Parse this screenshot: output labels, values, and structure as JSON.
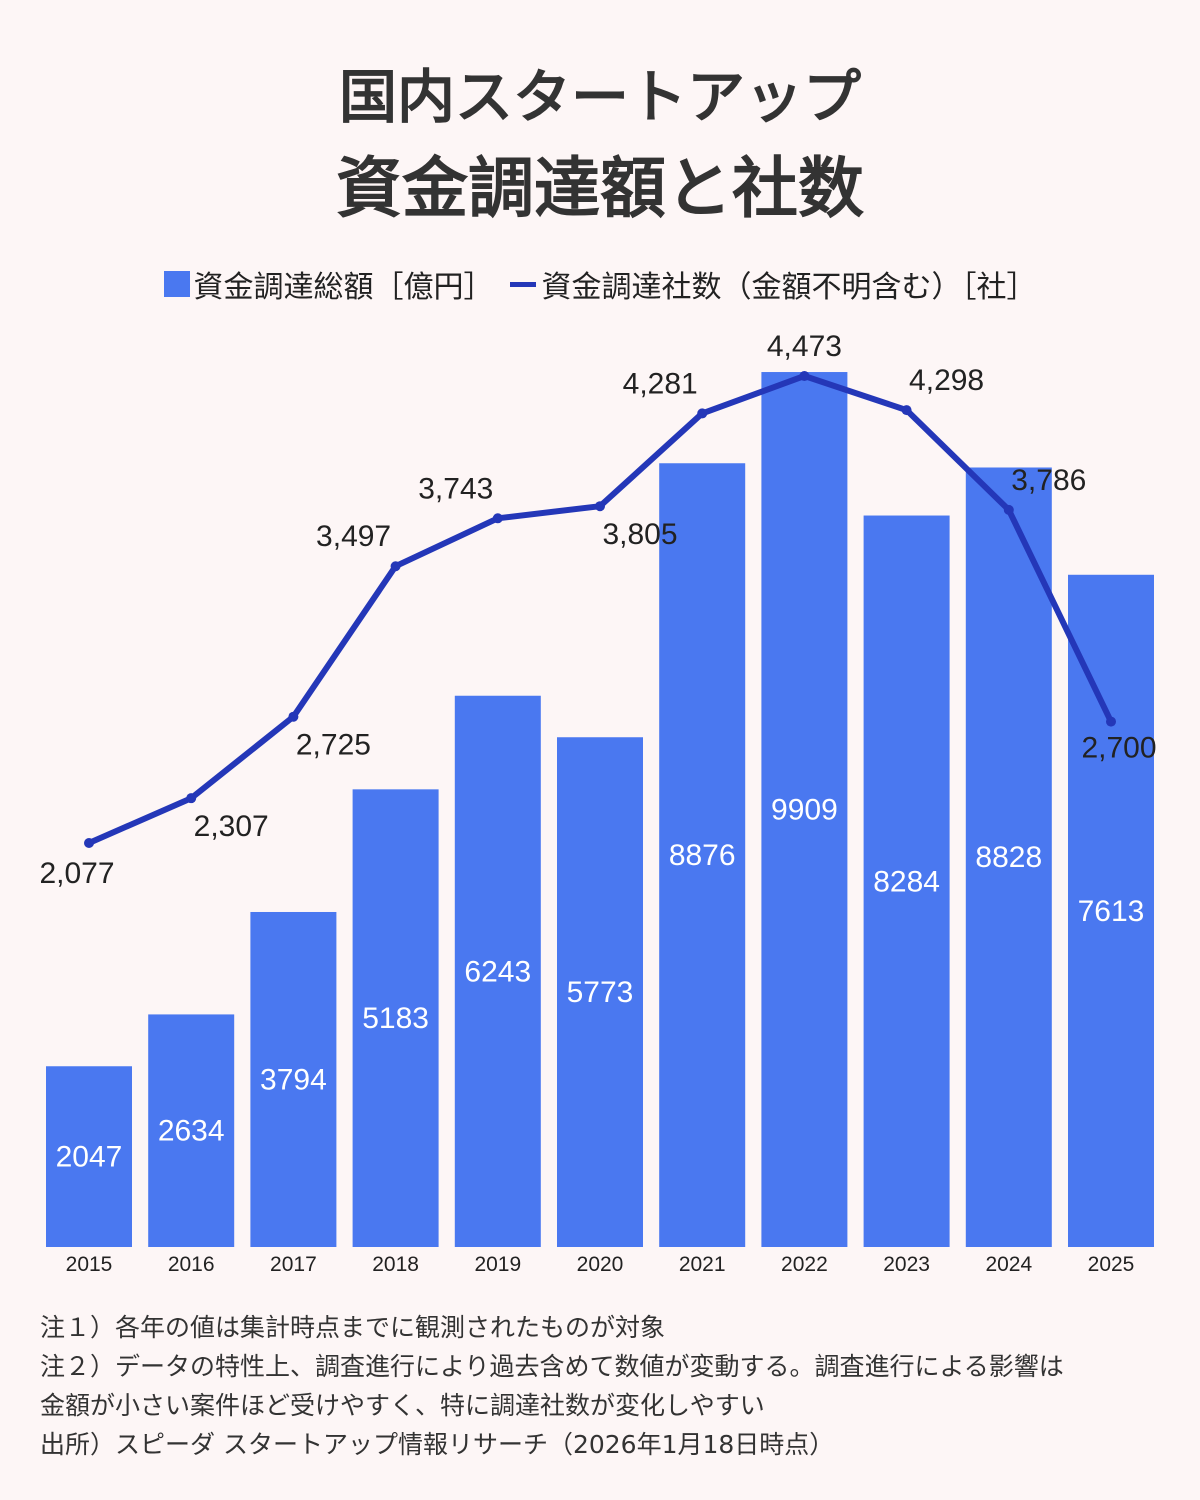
{
  "title": {
    "line1": "国内スタートアップ",
    "line2": "資金調達額と社数"
  },
  "legend": {
    "bar_label": "資金調達総額［億円］",
    "line_label": "資金調達社数（金額不明含む）［社］"
  },
  "colors": {
    "bar": "#4a78f0",
    "line": "#2437b8",
    "background": "#fdf6f6"
  },
  "chart_data": {
    "type": "bar",
    "categories": [
      "2015",
      "2016",
      "2017",
      "2018",
      "2019",
      "2020",
      "2021",
      "2022",
      "2023",
      "2024",
      "2025"
    ],
    "series": [
      {
        "name": "資金調達総額［億円］",
        "type": "bar",
        "values": [
          2047,
          2634,
          3794,
          5183,
          6243,
          5773,
          8876,
          9909,
          8284,
          8828,
          7613
        ],
        "labels": [
          "2047",
          "2634",
          "3794",
          "5183",
          "6243",
          "5773",
          "8876",
          "9909",
          "8284",
          "8828",
          "7613"
        ]
      },
      {
        "name": "資金調達社数（金額不明含む）［社］",
        "type": "line",
        "values": [
          2077,
          2307,
          2725,
          3497,
          3743,
          3805,
          4281,
          4473,
          4298,
          3786,
          2700
        ],
        "labels": [
          "2,077",
          "2,307",
          "2,725",
          "3,497",
          "3,743",
          "3,805",
          "4,281",
          "4,473",
          "4,298",
          "3,786",
          "2,700"
        ]
      }
    ],
    "grid": false,
    "legend_position": "top"
  },
  "notes": [
    "注１）各年の値は集計時点までに観測されたものが対象",
    "注２）データの特性上、調査進行により過去含めて数値が変動する。調査進行による影響は",
    "金額が小さい案件ほど受けやすく、特に調達社数が変化しやすい",
    "出所）スピーダ スタートアップ情報リサーチ（2026年1月18日時点）"
  ]
}
